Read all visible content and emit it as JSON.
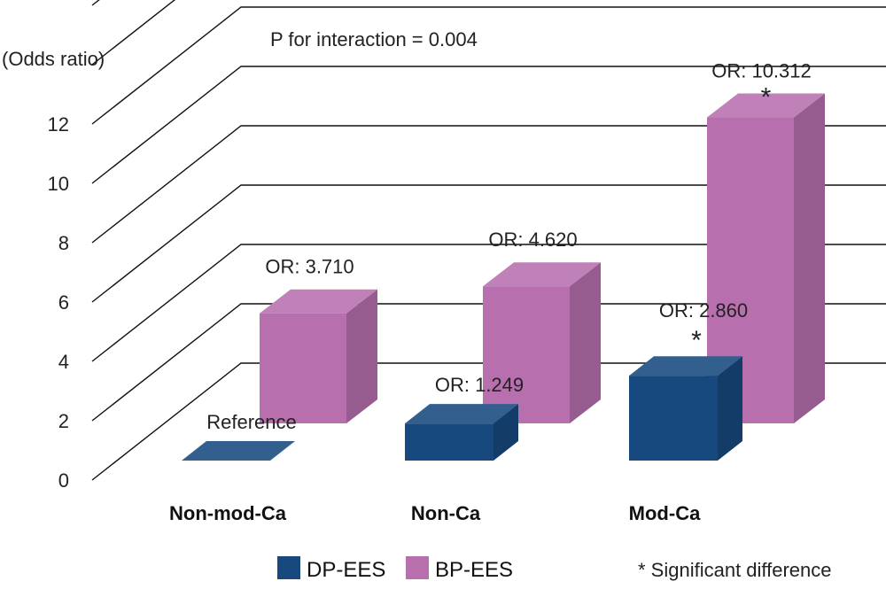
{
  "chart_data": {
    "type": "bar",
    "style": "3d-clustered",
    "ylabel": "(Odds ratio)",
    "ylim": [
      0,
      14
    ],
    "yticks": [
      0,
      2,
      4,
      6,
      8,
      10,
      12
    ],
    "categories": [
      "Non-mod-Ca",
      "Non-Ca",
      "Mod-Ca"
    ],
    "series": [
      {
        "name": "DP-EES",
        "color": "#17497F",
        "values": [
          0,
          1.249,
          2.86
        ],
        "labels": [
          "Reference",
          "OR: 1.249",
          "OR: 2.860"
        ],
        "significant": [
          false,
          false,
          true
        ]
      },
      {
        "name": "BP-EES",
        "color": "#B76FAE",
        "values": [
          3.71,
          4.62,
          10.312
        ],
        "labels": [
          "OR: 3.710",
          "OR: 4.620",
          "OR: 10.312"
        ],
        "significant": [
          false,
          false,
          true
        ]
      }
    ],
    "annotation": "P for interaction = 0.004",
    "significance_marker": "*",
    "legend_note": "* Significant difference"
  }
}
